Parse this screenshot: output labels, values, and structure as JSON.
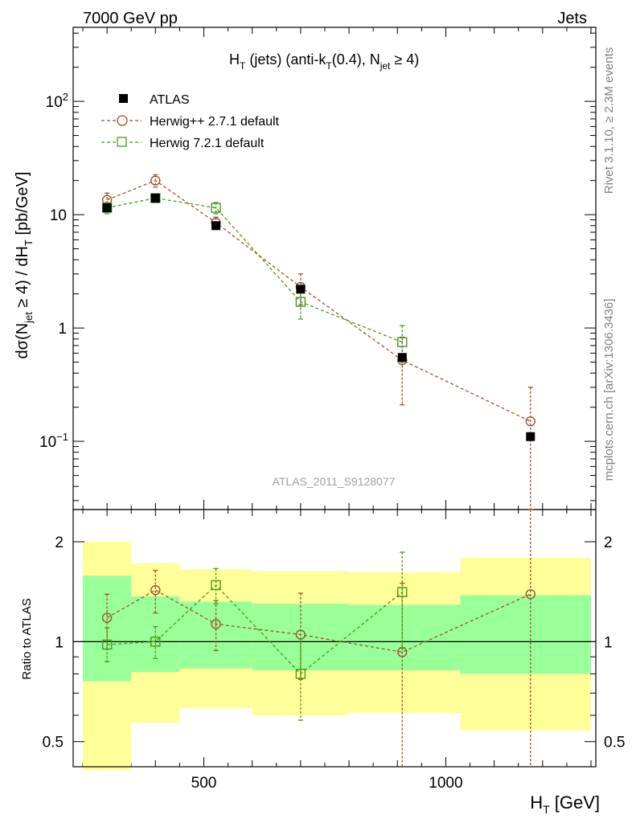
{
  "header": {
    "left": "7000 GeV pp",
    "right": "Jets"
  },
  "side_labels": {
    "rivet": "Rivet 3.1.10, ≥ 2.3M events",
    "site": "mcplots.cern.ch [arXiv:1306.3436]"
  },
  "watermark": "ATLAS_2011_S9128077",
  "chart_data": [
    {
      "type": "scatter",
      "panel": "main",
      "title_parts": {
        "a": "H",
        "a_sub": "T",
        "b": " (jets) (anti-k",
        "b_sub": "T",
        "c": "(0.4), N",
        "c_sub": "jet",
        "d": " ≥ 4)"
      },
      "ylabel_parts": {
        "a": "dσ(N",
        "a_sub": "jet",
        "b": " ≥ 4) / dH",
        "b_sub": "T",
        "c": " [pb/GeV]"
      },
      "xlabel": "",
      "yscale": "log",
      "xlim": [
        230,
        1310
      ],
      "ylim": [
        0.025,
        450
      ],
      "yticks": [
        {
          "value": 0.1,
          "base": "10",
          "exp": "−1"
        },
        {
          "value": 1,
          "base": "1",
          "exp": ""
        },
        {
          "value": 10,
          "base": "10",
          "exp": ""
        },
        {
          "value": 100,
          "base": "10",
          "exp": "2"
        }
      ],
      "x": [
        300,
        400,
        525,
        700,
        910,
        1175
      ],
      "series": [
        {
          "name": "ATLAS",
          "marker": "square-filled",
          "color": "#000000",
          "values": [
            11.5,
            14,
            8,
            2.2,
            0.55,
            0.11
          ]
        },
        {
          "name": "Herwig++ 2.7.1 default",
          "marker": "circle-open",
          "color": "#a0522d",
          "dashed": true,
          "values": [
            13.5,
            20,
            8.5,
            2.3,
            0.52,
            0.15
          ],
          "err_low": [
            11.8,
            17.5,
            7.6,
            1.6,
            0.21,
            0.0
          ],
          "err_high": [
            15.5,
            22.5,
            9.5,
            3.0,
            0.83,
            0.3
          ]
        },
        {
          "name": "Herwig 7.2.1 default",
          "marker": "square-open",
          "color": "#4a9a1a",
          "dashed": true,
          "values": [
            11.5,
            14,
            11.5,
            1.7,
            0.75,
            null
          ],
          "err_low": [
            10.2,
            12.8,
            10.2,
            1.2,
            0.5,
            null
          ],
          "err_high": [
            12.8,
            15.2,
            12.8,
            2.1,
            1.05,
            null
          ]
        }
      ]
    },
    {
      "type": "scatter",
      "panel": "ratio",
      "ylabel": "Ratio to ATLAS",
      "xlabel_parts": {
        "a": "H",
        "a_sub": "T",
        "b": " [GeV]"
      },
      "yscale": "log",
      "xlim": [
        230,
        1310
      ],
      "ylim": [
        0.42,
        2.5
      ],
      "yticks": [
        {
          "value": 0.5,
          "label": "0.5"
        },
        {
          "value": 1,
          "label": "1"
        },
        {
          "value": 2,
          "label": "2"
        }
      ],
      "xticks": [
        {
          "value": 500,
          "label": "500"
        },
        {
          "value": 1000,
          "label": "1000"
        }
      ],
      "bands": {
        "bin_edges": [
          250,
          350,
          450,
          600,
          800,
          1030,
          1300
        ],
        "yellow_low": [
          0.41,
          0.57,
          0.63,
          0.6,
          0.61,
          0.54
        ],
        "yellow_high": [
          2.0,
          1.72,
          1.65,
          1.63,
          1.62,
          1.79
        ],
        "green_low": [
          0.76,
          0.81,
          0.83,
          0.82,
          0.82,
          0.8
        ],
        "green_high": [
          1.58,
          1.37,
          1.32,
          1.3,
          1.29,
          1.38
        ],
        "yellow_color": "#ffff99",
        "green_color": "#99ff99"
      },
      "x": [
        300,
        400,
        525,
        700,
        910,
        1175
      ],
      "series": [
        {
          "name": "Herwig++ 2.7.1 default",
          "color": "#a0522d",
          "marker": "circle-open",
          "values": [
            1.18,
            1.43,
            1.13,
            1.05,
            0.93,
            1.39
          ],
          "err_low": [
            0.95,
            1.22,
            0.94,
            0.77,
            0.33,
            0.33
          ],
          "err_high": [
            1.39,
            1.64,
            1.33,
            1.4,
            1.5,
            2.9
          ]
        },
        {
          "name": "Herwig 7.2.1 default",
          "color": "#4a9a1a",
          "marker": "square-open",
          "values": [
            0.98,
            1.0,
            1.48,
            0.8,
            1.41,
            null
          ],
          "err_low": [
            0.87,
            0.89,
            1.3,
            0.58,
            0.96,
            null
          ],
          "err_high": [
            1.1,
            1.11,
            1.66,
            1.02,
            1.86,
            null
          ]
        }
      ]
    }
  ]
}
